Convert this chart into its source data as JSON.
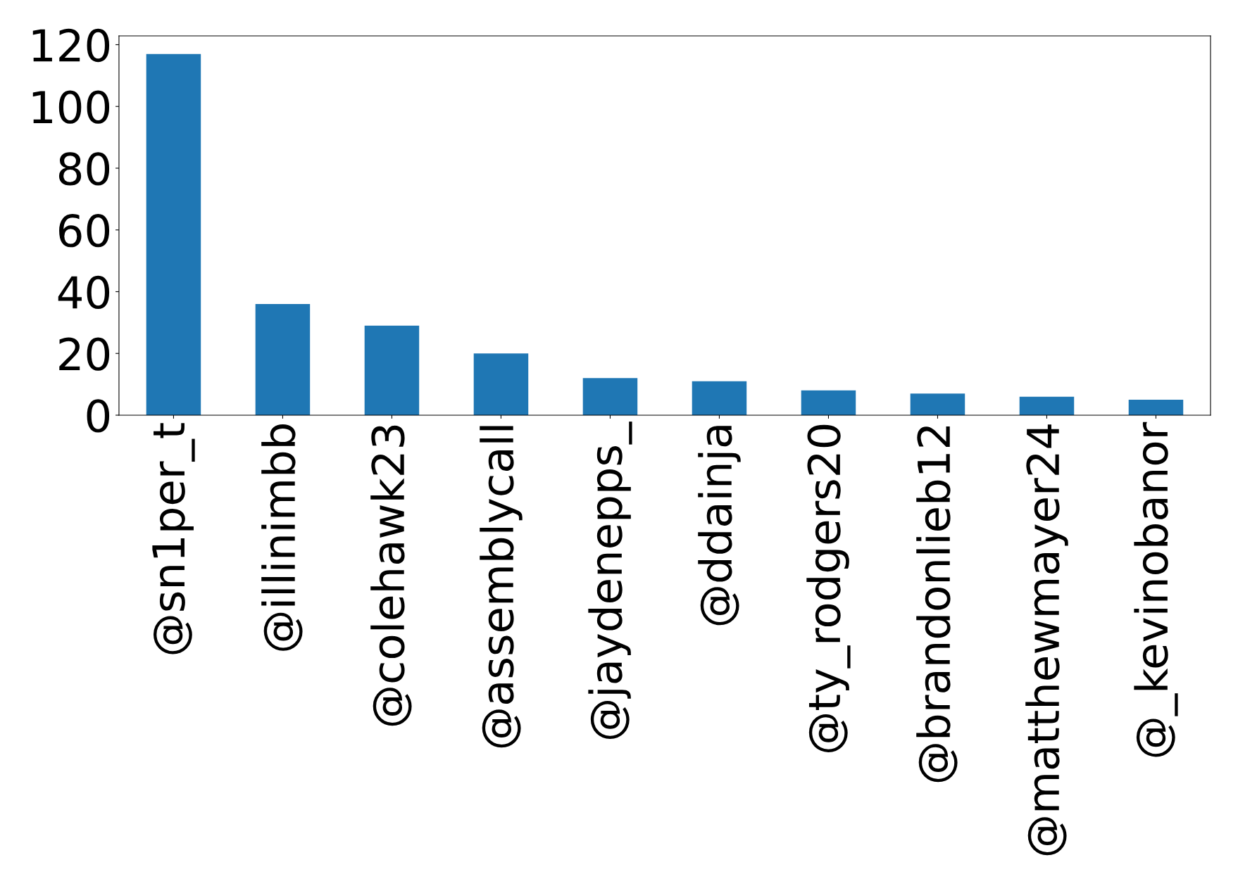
{
  "chart_data": {
    "type": "bar",
    "categories": [
      "@sn1per_t",
      "@illinimbb",
      "@colehawk23",
      "@assemblycall",
      "@jaydenepps_",
      "@ddainja",
      "@ty_rodgers20",
      "@brandonlieb12",
      "@matthewmayer24",
      "@_kevinobanor"
    ],
    "values": [
      117,
      36,
      29,
      20,
      12,
      11,
      8,
      7,
      6,
      5
    ],
    "color": "#1f77b4",
    "ylim": [
      0,
      122.85
    ],
    "yticks": [
      0,
      20,
      40,
      60,
      80,
      100,
      120
    ],
    "grid": false,
    "legend": false
  }
}
